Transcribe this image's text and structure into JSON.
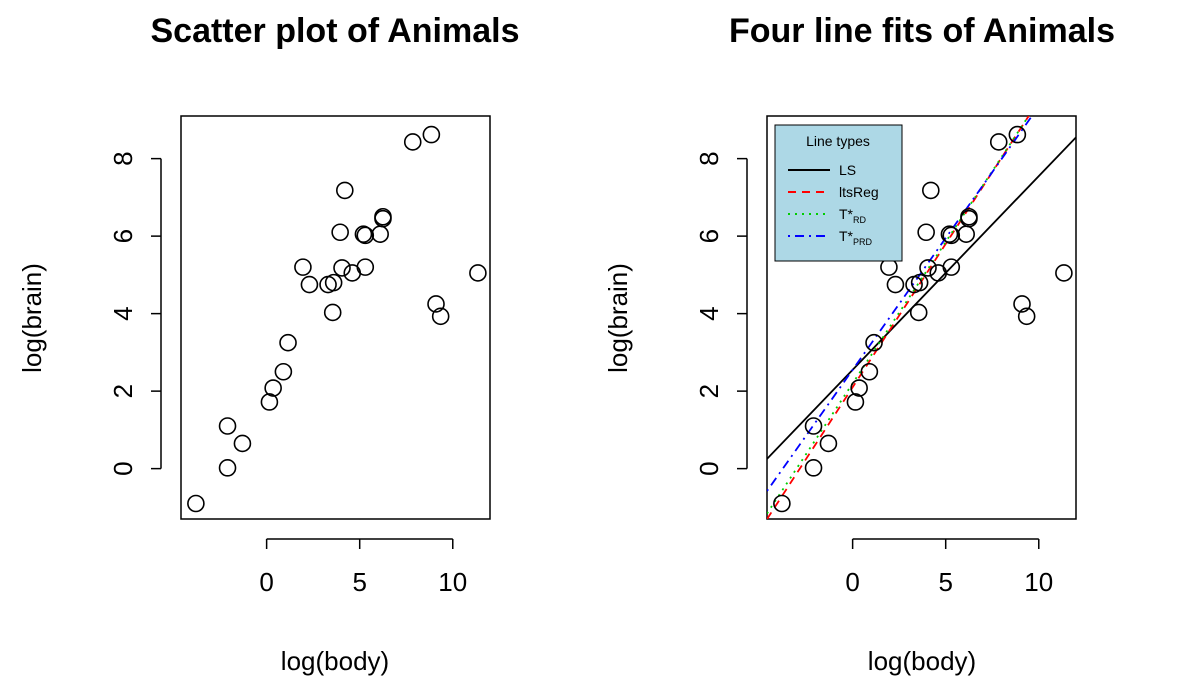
{
  "chart_data": [
    {
      "type": "scatter",
      "title": "Scatter plot of Animals",
      "xlabel": "log(body)",
      "ylabel": "log(brain)",
      "xlim": [
        -4.6,
        12.0
      ],
      "ylim": [
        -1.3,
        9.1
      ],
      "xticks": [
        0,
        5,
        10
      ],
      "yticks": [
        0,
        2,
        4,
        6,
        8
      ],
      "x_tick_labels": [
        "0",
        "5",
        "10"
      ],
      "y_tick_labels": [
        "0",
        "2",
        "4",
        "6",
        "8"
      ],
      "grid": false,
      "points": [
        {
          "x": 0.15,
          "y": 1.72
        },
        {
          "x": 0.35,
          "y": 2.08
        },
        {
          "x": 0.9,
          "y": 2.5
        },
        {
          "x": 1.15,
          "y": 3.25
        },
        {
          "x": -1.3,
          "y": 0.65
        },
        {
          "x": -2.1,
          "y": 1.1
        },
        {
          "x": -2.1,
          "y": 0.02
        },
        {
          "x": -3.8,
          "y": -0.9
        },
        {
          "x": 1.95,
          "y": 5.2
        },
        {
          "x": 2.3,
          "y": 4.75
        },
        {
          "x": 3.3,
          "y": 4.75
        },
        {
          "x": 3.6,
          "y": 4.8
        },
        {
          "x": 3.55,
          "y": 4.03
        },
        {
          "x": 3.95,
          "y": 6.1
        },
        {
          "x": 4.05,
          "y": 5.18
        },
        {
          "x": 4.2,
          "y": 7.18
        },
        {
          "x": 4.6,
          "y": 5.05
        },
        {
          "x": 5.2,
          "y": 6.05
        },
        {
          "x": 5.3,
          "y": 6.02
        },
        {
          "x": 5.3,
          "y": 5.2
        },
        {
          "x": 6.1,
          "y": 6.05
        },
        {
          "x": 6.25,
          "y": 6.45
        },
        {
          "x": 6.25,
          "y": 6.5
        },
        {
          "x": 7.85,
          "y": 8.43
        },
        {
          "x": 8.85,
          "y": 8.62
        },
        {
          "x": 9.1,
          "y": 4.25
        },
        {
          "x": 9.35,
          "y": 3.93
        },
        {
          "x": 11.35,
          "y": 5.05
        }
      ]
    },
    {
      "type": "line",
      "title": "Four line fits of Animals",
      "xlabel": "log(body)",
      "ylabel": "log(brain)",
      "xlim": [
        -4.6,
        12.0
      ],
      "ylim": [
        -1.3,
        9.1
      ],
      "xticks": [
        0,
        5,
        10
      ],
      "yticks": [
        0,
        2,
        4,
        6,
        8
      ],
      "x_tick_labels": [
        "0",
        "5",
        "10"
      ],
      "y_tick_labels": [
        "0",
        "2",
        "4",
        "6",
        "8"
      ],
      "grid": false,
      "legend": {
        "title": "Line types",
        "placement": "top-left",
        "background": "#add8e6",
        "entries": [
          {
            "label": "LS",
            "color": "#000000",
            "dash": "solid"
          },
          {
            "label": "ltsReg",
            "color": "#ff0000",
            "dash": "dashed"
          },
          {
            "label": "T*",
            "sub": "RD",
            "color": "#00cd00",
            "dash": "dotted"
          },
          {
            "label": "T*",
            "sub": "PRD",
            "color": "#0000ff",
            "dash": "dotdash"
          }
        ]
      },
      "series": [
        {
          "key": "LS",
          "intercept": 2.55,
          "slope": 0.5,
          "color": "#000000",
          "dash": "solid"
        },
        {
          "key": "ltsReg",
          "intercept": 2.1,
          "slope": 0.74,
          "color": "#ff0000",
          "dash": "dashed"
        },
        {
          "key": "T_RD",
          "intercept": 2.2,
          "slope": 0.73,
          "color": "#00cd00",
          "dash": "dotted"
        },
        {
          "key": "T_PRD",
          "intercept": 2.55,
          "slope": 0.68,
          "color": "#0000ff",
          "dash": "dotdash"
        }
      ],
      "points_ref": 0
    }
  ]
}
